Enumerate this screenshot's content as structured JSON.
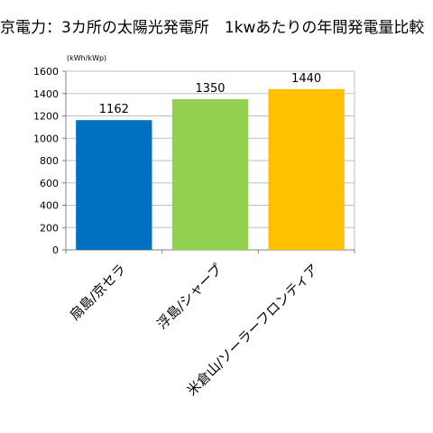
{
  "chart_data": {
    "type": "bar",
    "title": "京電力：3カ所の太陽光発電所　1kwあたりの年間発電量比較",
    "unit_label": "(kWh/kWp)",
    "categories": [
      "扇島/京セラ",
      "浮島/シャープ",
      "米倉山/ソーラーフロンティア"
    ],
    "values": [
      1162,
      1350,
      1440
    ],
    "data_labels": [
      "1162",
      "1350",
      "1440"
    ],
    "bar_colors": [
      "#0070c0",
      "#92d050",
      "#ffc000"
    ],
    "ylim": [
      0,
      1600
    ],
    "yticks": [
      "0",
      "200",
      "400",
      "600",
      "800",
      "1000",
      "1200",
      "1400",
      "1600"
    ],
    "grid": true,
    "legend": "none"
  }
}
